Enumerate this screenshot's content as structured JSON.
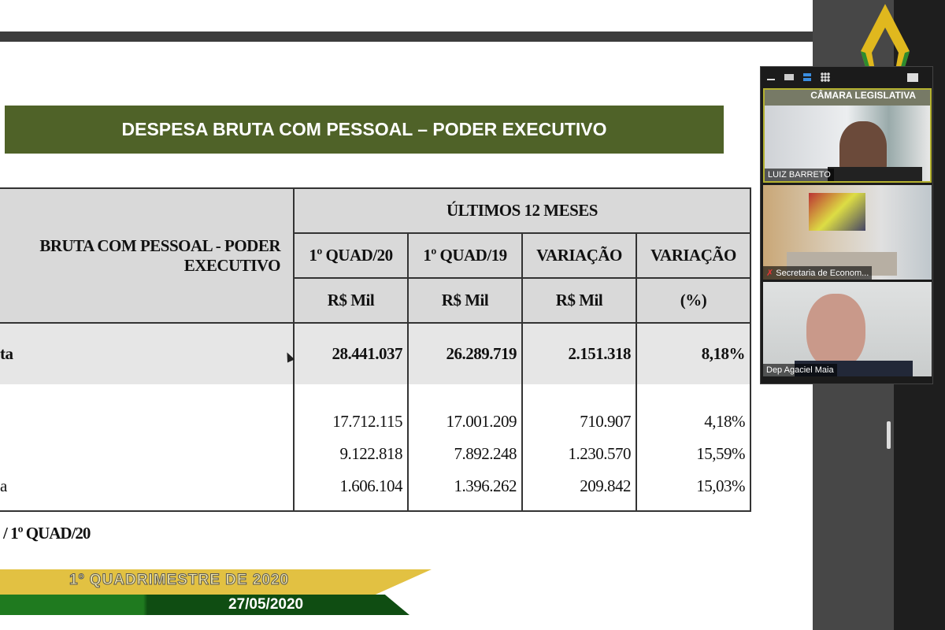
{
  "slide": {
    "title": "DESPESA BRUTA COM PESSOAL – PODER EXECUTIVO",
    "table": {
      "group_header": "ÚLTIMOS 12 MESES",
      "row_header": "BRUTA COM PESSOAL - PODER EXECUTIVO",
      "columns": [
        "1º QUAD/20",
        "1º QUAD/19",
        "VARIAÇÃO",
        "VARIAÇÃO"
      ],
      "units": [
        "R$ Mil",
        "R$ Mil",
        "R$ Mil",
        "(%)"
      ],
      "rows": [
        {
          "label": "ta",
          "values": [
            "28.441.037",
            "26.289.719",
            "2.151.318",
            "8,18%"
          ]
        },
        {
          "label": "",
          "values": [
            "17.712.115",
            "17.001.209",
            "710.907",
            "4,18%"
          ]
        },
        {
          "label": "",
          "values": [
            "9.122.818",
            "7.892.248",
            "1.230.570",
            "15,59%"
          ]
        },
        {
          "label": "a",
          "values": [
            "1.606.104",
            "1.396.262",
            "209.842",
            "15,03%"
          ]
        }
      ]
    },
    "footnote": "/ 1º QUAD/20",
    "banner_period": "1º QUADRIMESTRE DE 2020",
    "banner_date": "27/05/2020"
  },
  "logo": {
    "text": "CÂMARA LEGISLATIVA",
    "colors": [
      "#e0b81e",
      "#2e8b2e"
    ]
  },
  "video_panel": {
    "toolbar_icons": [
      "minimize-icon",
      "thumbnail-view-icon",
      "speaker-view-icon",
      "gallery-view-icon",
      "exit-fullscreen-icon"
    ],
    "participants": [
      {
        "name": "LUIZ BARRETO",
        "muted": false
      },
      {
        "name": "Secretaria de Econom...",
        "muted": true
      },
      {
        "name": "Dep Agaciel Maia",
        "muted": false
      }
    ]
  }
}
